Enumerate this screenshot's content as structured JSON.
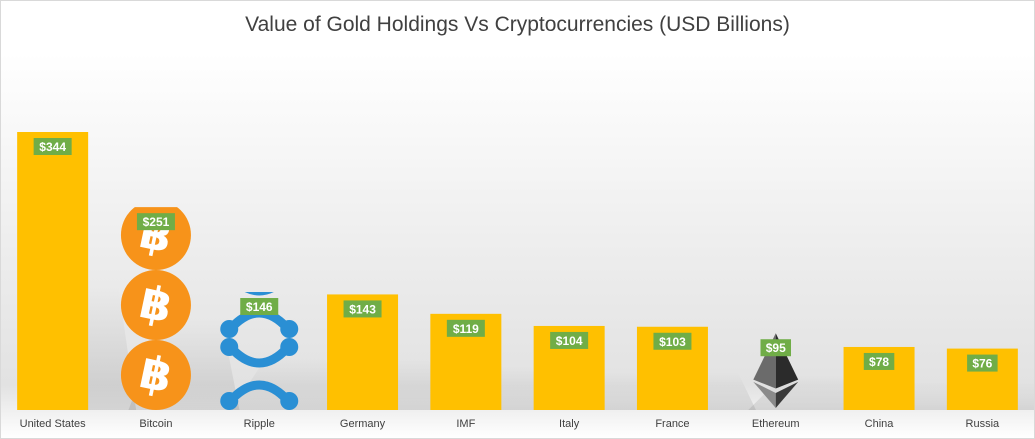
{
  "chart_data": {
    "type": "bar",
    "title": "Value of Gold Holdings Vs Cryptocurrencies (USD Billions)",
    "xlabel": "",
    "ylabel": "",
    "ylim": [
      0,
      360
    ],
    "grid": false,
    "legend": "none",
    "categories": [
      "United States",
      "Bitcoin",
      "Ripple",
      "Germany",
      "IMF",
      "Italy",
      "France",
      "Ethereum",
      "China",
      "Russia"
    ],
    "values": [
      344,
      251,
      146,
      143,
      119,
      104,
      103,
      95,
      78,
      76
    ],
    "data_labels": [
      "$344",
      "$251",
      "$146",
      "$143",
      "$119",
      "$104",
      "$103",
      "$95",
      "$78",
      "$76"
    ],
    "bar_style": [
      "bar",
      "bitcoin-icon",
      "ripple-icon",
      "bar",
      "bar",
      "bar",
      "bar",
      "ethereum-icon",
      "bar",
      "bar"
    ],
    "colors": {
      "bar": "#ffc000",
      "label_bg": "#70ad47",
      "bitcoin": "#f7931a",
      "ripple": "#2a8fd4",
      "ethereum": "#2b2b2b"
    }
  }
}
